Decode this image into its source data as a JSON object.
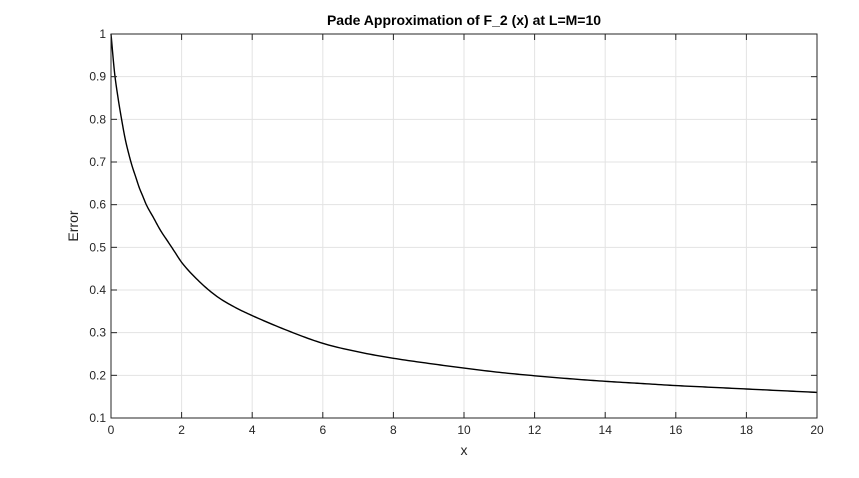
{
  "chart_data": {
    "type": "line",
    "title": "Pade Approximation of F_2 (x) at L=M=10",
    "xlabel": "x",
    "ylabel": "Error",
    "xlim": [
      0,
      20
    ],
    "ylim": [
      0.1,
      1
    ],
    "xticks": [
      0,
      2,
      4,
      6,
      8,
      10,
      12,
      14,
      16,
      18,
      20
    ],
    "yticks": [
      0.1,
      0.2,
      0.3,
      0.4,
      0.5,
      0.6,
      0.7,
      0.8,
      0.9,
      1
    ],
    "xtick_labels": [
      "0",
      "2",
      "4",
      "6",
      "8",
      "10",
      "12",
      "14",
      "16",
      "18",
      "20"
    ],
    "ytick_labels": [
      "0.1",
      "0.2",
      "0.3",
      "0.4",
      "0.5",
      "0.6",
      "0.7",
      "0.8",
      "0.9",
      "1"
    ],
    "grid": true,
    "box": true,
    "series": [
      {
        "color": "#000000",
        "x": [
          0,
          0.1,
          0.2,
          0.3,
          0.4,
          0.5,
          0.6,
          0.7,
          0.8,
          0.9,
          1.0,
          1.2,
          1.4,
          1.6,
          1.8,
          2.0,
          2.5,
          3.0,
          3.5,
          4.0,
          5.0,
          6.0,
          7.0,
          8.0,
          9.0,
          10.0,
          11.0,
          12.0,
          13.0,
          14.0,
          15.0,
          16.0,
          17.0,
          18.0,
          19.0,
          20.0
        ],
        "y": [
          1.0,
          0.91,
          0.85,
          0.8,
          0.755,
          0.72,
          0.69,
          0.665,
          0.64,
          0.62,
          0.6,
          0.57,
          0.54,
          0.515,
          0.49,
          0.465,
          0.42,
          0.385,
          0.36,
          0.34,
          0.305,
          0.275,
          0.255,
          0.24,
          0.228,
          0.217,
          0.207,
          0.199,
          0.192,
          0.186,
          0.181,
          0.176,
          0.172,
          0.168,
          0.164,
          0.16
        ]
      }
    ]
  }
}
